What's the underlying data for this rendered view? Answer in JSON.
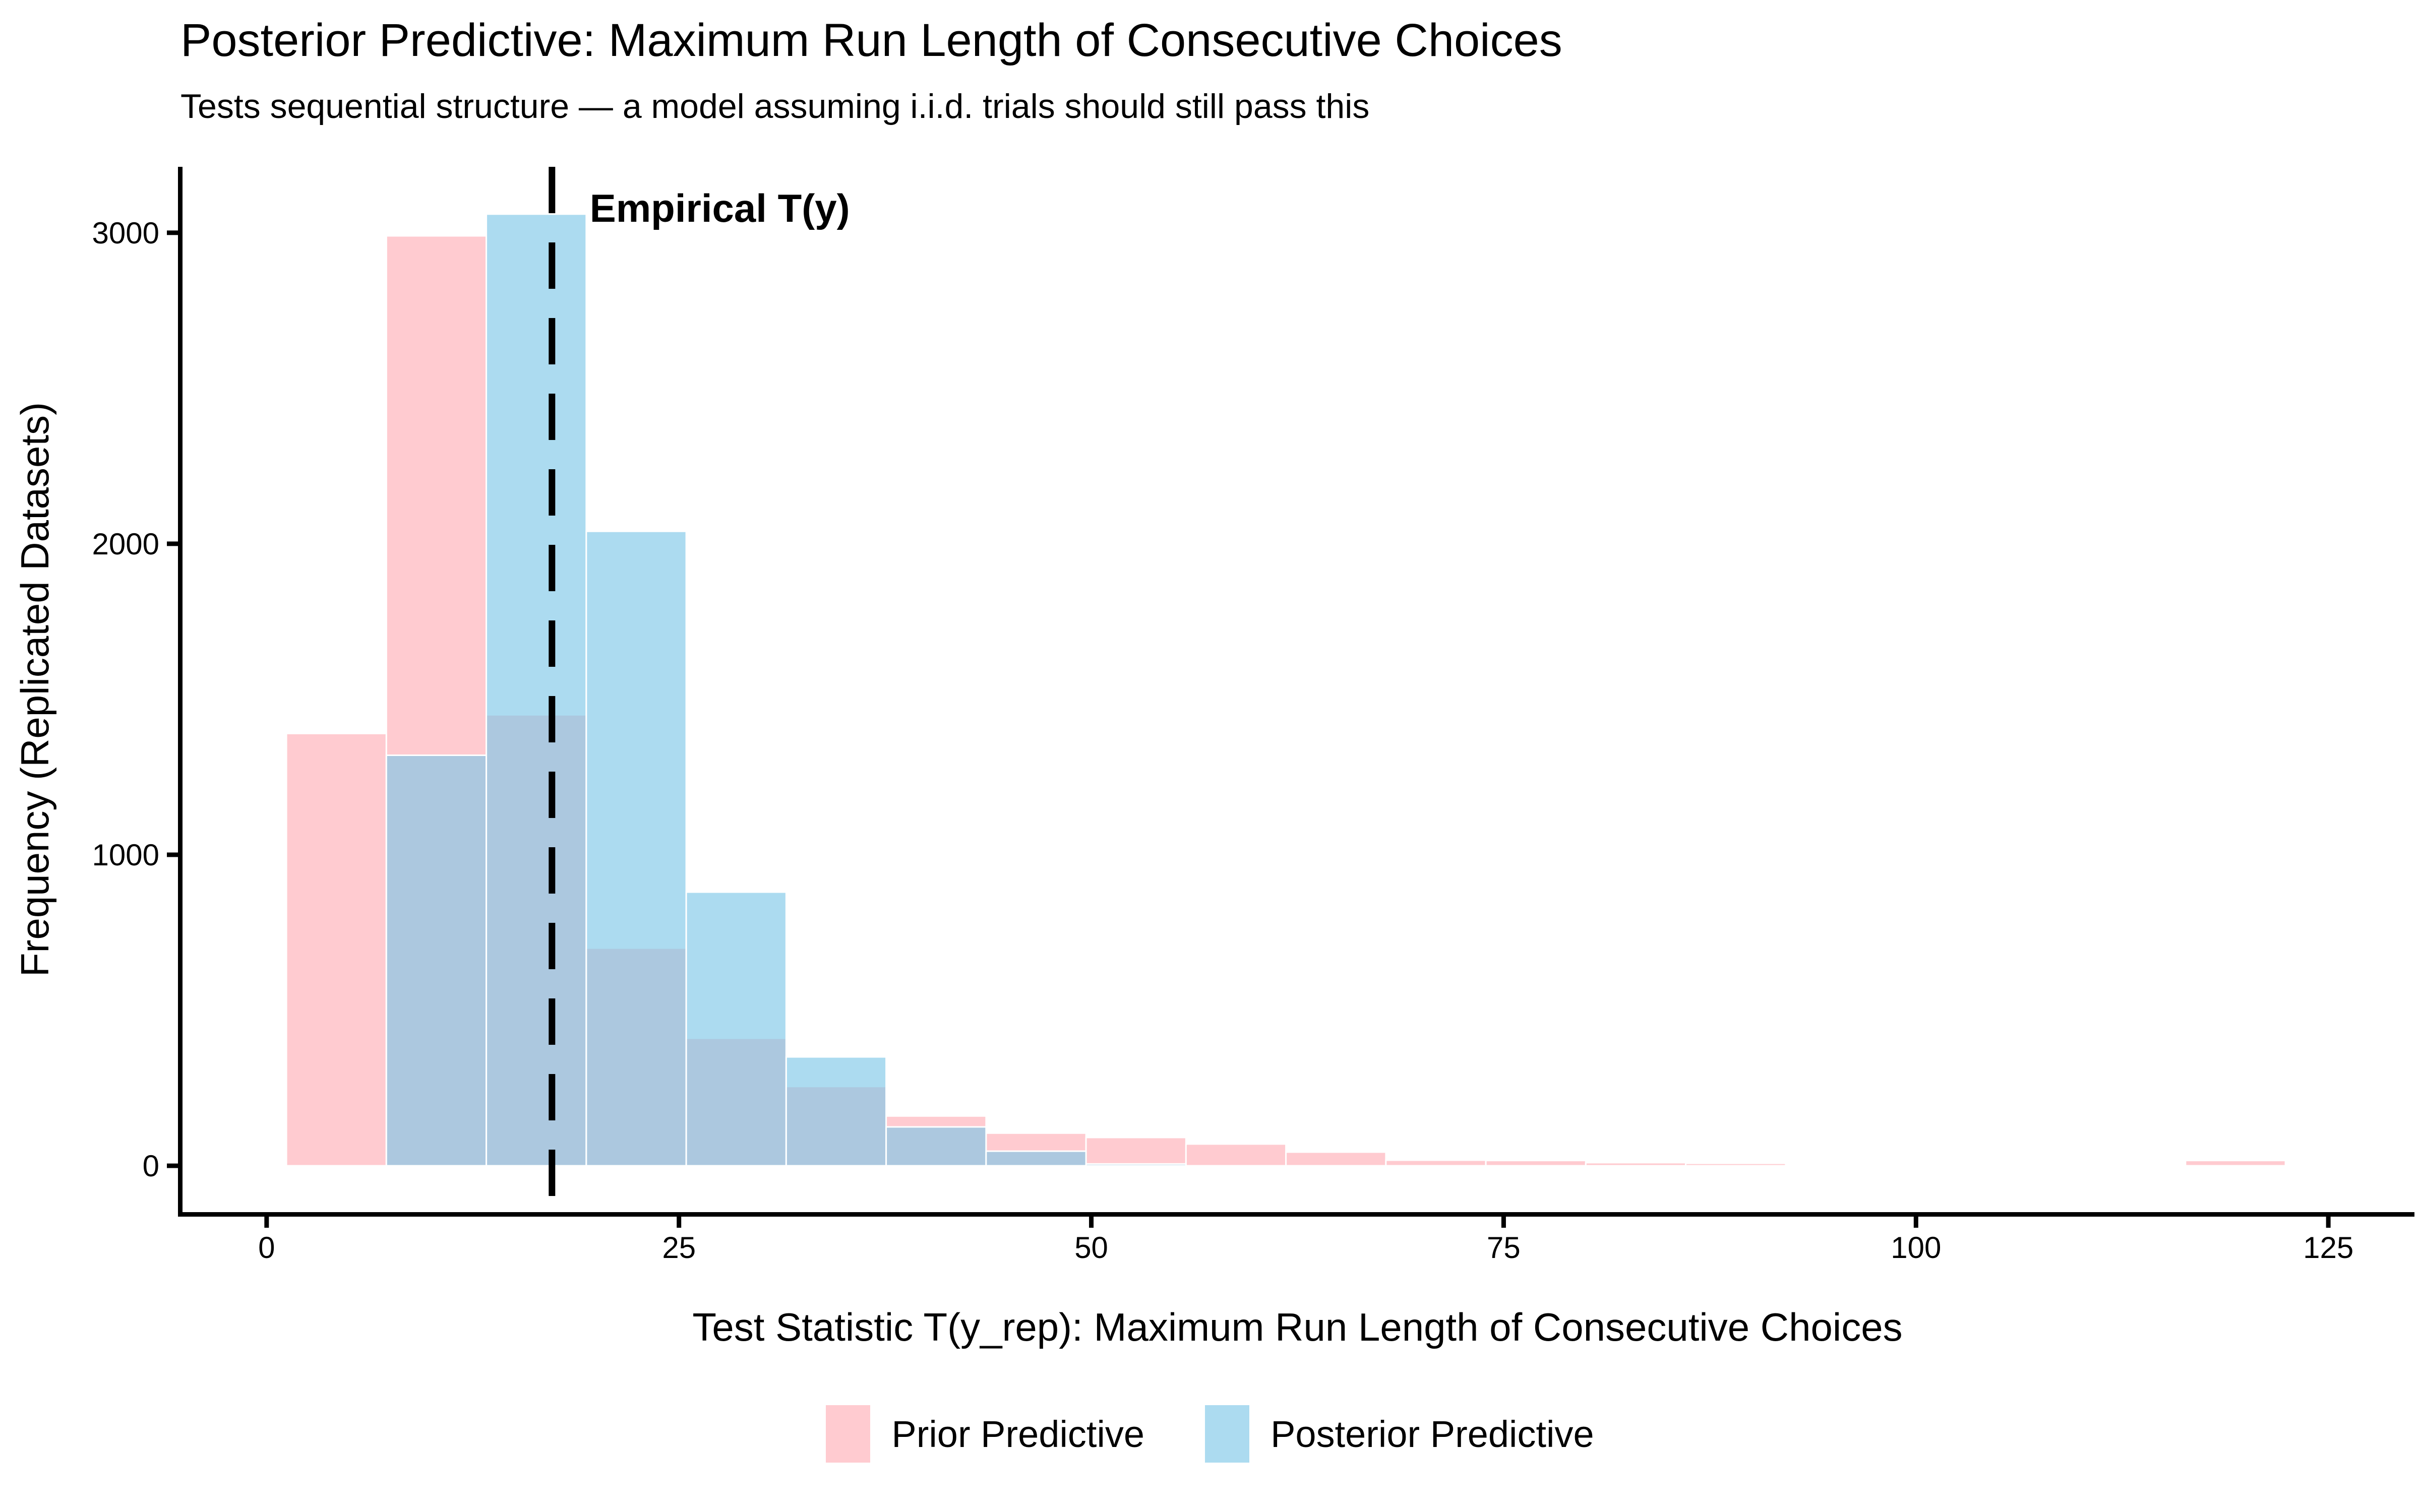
{
  "chart_data": {
    "type": "bar",
    "subtype": "overlaid-histogram",
    "title": "Posterior Predictive: Maximum Run Length of Consecutive Choices",
    "subtitle": "Tests sequential structure — a model assuming i.i.d. trials should still pass this",
    "xlabel": "Test Statistic T(y_rep): Maximum Run Length of Consecutive Choices",
    "ylabel": "Frequency (Replicated Datasets)",
    "x_ticks": [
      0,
      25,
      50,
      75,
      100,
      125
    ],
    "y_ticks": [
      0,
      1000,
      2000,
      3000
    ],
    "x_range": [
      -5.1,
      130.1
    ],
    "y_range": [
      -149,
      3212
    ],
    "grid": "off",
    "legend_position": "bottom",
    "bin_width": 6.06,
    "bins_x0": [
      1.2,
      7.26,
      13.32,
      19.38,
      25.44,
      31.5,
      37.56,
      43.62,
      49.68,
      55.74,
      61.8,
      67.86,
      73.92,
      79.98,
      86.04,
      116.34
    ],
    "series": [
      {
        "name": "Prior Predictive",
        "color": "rgba(255,175,183,0.65)",
        "values": [
          1390,
          2990,
          1450,
          700,
          410,
          255,
          160,
          105,
          91,
          70,
          44,
          18,
          17,
          10,
          8,
          17
        ]
      },
      {
        "name": "Posterior Predictive",
        "color": "rgba(123,198,231,0.63)",
        "values": [
          0,
          1320,
          3060,
          2040,
          880,
          350,
          125,
          47,
          6,
          0,
          0,
          0,
          0,
          0,
          0,
          0
        ]
      }
    ],
    "annotation": {
      "label": "Empirical T(y)",
      "x": 17.3
    },
    "vline": {
      "x": 17.3,
      "style": "dashed",
      "color": "#000000"
    }
  },
  "legend": {
    "prior_label": "Prior Predictive",
    "posterior_label": "Posterior Predictive"
  }
}
